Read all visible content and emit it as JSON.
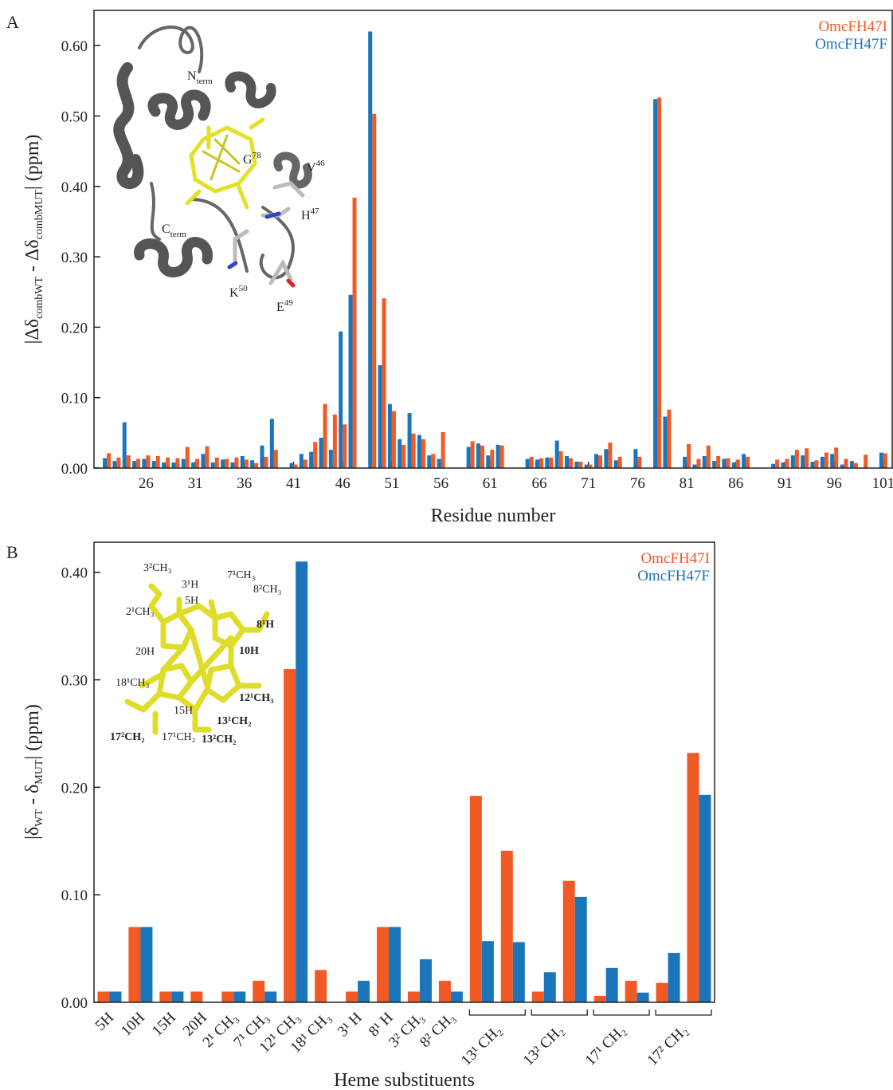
{
  "chart_data": [
    {
      "type": "bar",
      "panel_label": "A",
      "xlabel": "Residue number",
      "ylabel": [
        "|Δδ",
        "combWT",
        " - Δδ",
        "combMUT",
        "| (ppm)"
      ],
      "x": [
        22,
        23,
        24,
        25,
        26,
        27,
        28,
        29,
        30,
        31,
        32,
        33,
        34,
        35,
        36,
        37,
        38,
        39,
        41,
        42,
        43,
        44,
        45,
        46,
        47,
        49,
        50,
        51,
        52,
        53,
        54,
        55,
        56,
        59,
        60,
        61,
        62,
        65,
        66,
        67,
        68,
        69,
        70,
        71,
        72,
        73,
        74,
        76,
        78,
        79,
        81,
        82,
        83,
        84,
        85,
        86,
        87,
        90,
        91,
        92,
        93,
        94,
        95,
        96,
        97,
        98,
        99,
        101
      ],
      "series": [
        {
          "name": "OmcFH47I",
          "color": "#f15a24",
          "values": [
            0.021,
            0.015,
            0.018,
            0.013,
            0.018,
            0.017,
            0.015,
            0.014,
            0.03,
            0.013,
            0.031,
            0.015,
            0.013,
            0.015,
            0.012,
            0.007,
            0.016,
            0.026,
            0.005,
            0.012,
            0.037,
            0.091,
            0.076,
            0.062,
            0.384,
            0.503,
            0.241,
            0.081,
            0.033,
            0.049,
            0.041,
            0.02,
            0.051,
            0.038,
            0.032,
            0.026,
            0.032,
            0.016,
            0.014,
            0.015,
            0.024,
            0.014,
            0.009,
            0.005,
            0.018,
            0.036,
            0.016,
            0.016,
            0.526,
            0.083,
            0.034,
            0.013,
            0.032,
            0.017,
            0.014,
            0.012,
            0.016,
            0.012,
            0.013,
            0.026,
            0.028,
            0.011,
            0.022,
            0.029,
            0.013,
            0.007,
            0.019,
            0.021
          ]
        },
        {
          "name": "OmcFH47F",
          "color": "#1b75bb",
          "values": [
            0.014,
            0.01,
            0.065,
            0.01,
            0.013,
            0.01,
            0.008,
            0.008,
            0.013,
            0.008,
            0.02,
            0.008,
            0.012,
            0.008,
            0.017,
            0.011,
            0.032,
            0.07,
            0.007,
            0.02,
            0.023,
            0.043,
            0.026,
            0.194,
            0.246,
            0.62,
            0.146,
            0.091,
            0.041,
            0.078,
            0.047,
            0.018,
            0.013,
            0.03,
            0.035,
            0.018,
            0.033,
            0.013,
            0.012,
            0.015,
            0.039,
            0.017,
            0.009,
            0.005,
            0.02,
            0.027,
            0.011,
            0.027,
            0.524,
            0.073,
            0.016,
            0.005,
            0.017,
            0.01,
            0.013,
            0.008,
            0.02,
            0.006,
            0.008,
            0.018,
            0.018,
            0.009,
            0.016,
            0.02,
            0.005,
            0.01,
            null,
            0.022
          ]
        }
      ],
      "xlim": [
        20.7,
        101.9
      ],
      "xticks": [
        26,
        31,
        36,
        41,
        46,
        51,
        56,
        61,
        66,
        71,
        76,
        81,
        86,
        91,
        96,
        101
      ],
      "ylim": [
        0,
        0.65
      ],
      "yticks": [
        {
          "value": 0,
          "label": "0.00"
        },
        {
          "value": 0.1,
          "label": "0.10"
        },
        {
          "value": 0.2,
          "label": "0.20"
        },
        {
          "value": 0.3,
          "label": "0.30"
        },
        {
          "value": 0.4,
          "label": "0.40"
        },
        {
          "value": 0.5,
          "label": "0.50"
        },
        {
          "value": 0.6,
          "label": "0.60"
        }
      ],
      "legend": "upper right",
      "inset_labels": [
        {
          "text": "N",
          "sub": "term"
        },
        {
          "text": "G",
          "sup": "78"
        },
        {
          "text": "V",
          "sup": "46"
        },
        {
          "text": "H",
          "sup": "47"
        },
        {
          "text": "C",
          "sub": "term"
        },
        {
          "text": "K",
          "sup": "50"
        },
        {
          "text": "E",
          "sup": "49"
        }
      ]
    },
    {
      "type": "bar",
      "panel_label": "B",
      "xlabel": "Heme substituents",
      "ylabel": [
        "|δ",
        "WT",
        " - δ",
        "MUT",
        "| (ppm)"
      ],
      "categories": [
        "5H",
        "10H",
        "15H",
        "20H",
        "2¹ CH₃",
        "7¹ CH₃",
        "12¹ CH₃",
        "18¹ CH₃",
        "3¹ H",
        "8¹ H",
        "3² CH₃",
        "8² CH₃",
        "13¹ CH₂",
        null,
        "13² CH₂",
        null,
        "17¹ CH₂",
        null,
        "17² CH₂",
        null
      ],
      "series": [
        {
          "name": "OmcFH47I",
          "color": "#f15a24",
          "values": [
            0.01,
            0.07,
            0.01,
            0.01,
            0.01,
            0.02,
            0.31,
            0.03,
            0.01,
            0.07,
            0.01,
            0.02,
            0.192,
            0.141,
            0.01,
            0.113,
            0.006,
            0.02,
            0.018,
            0.232
          ]
        },
        {
          "name": "OmcFH47F",
          "color": "#1b75bb",
          "values": [
            0.01,
            0.07,
            0.01,
            null,
            0.01,
            0.01,
            0.41,
            null,
            0.02,
            0.07,
            0.04,
            0.01,
            0.057,
            0.056,
            0.028,
            0.098,
            0.032,
            0.009,
            0.046,
            0.193
          ]
        }
      ],
      "ylim": [
        0,
        0.428
      ],
      "yticks": [
        {
          "value": 0,
          "label": "0.00"
        },
        {
          "value": 0.1,
          "label": "0.10"
        },
        {
          "value": 0.2,
          "label": "0.20"
        },
        {
          "value": 0.3,
          "label": "0.30"
        },
        {
          "value": 0.4,
          "label": "0.40"
        }
      ],
      "legend": "upper right",
      "inset_labels": [
        "3²CH₃",
        "3¹H",
        "5H",
        "7¹CH₃",
        "8²CH₃",
        "2¹CH₃",
        "8¹H",
        "20H",
        "10H",
        "18¹CH₃",
        "12¹CH₃",
        "15H",
        "13¹CH₂",
        "17²CH₂",
        "17¹CH₂",
        "13²CH₂"
      ]
    }
  ]
}
